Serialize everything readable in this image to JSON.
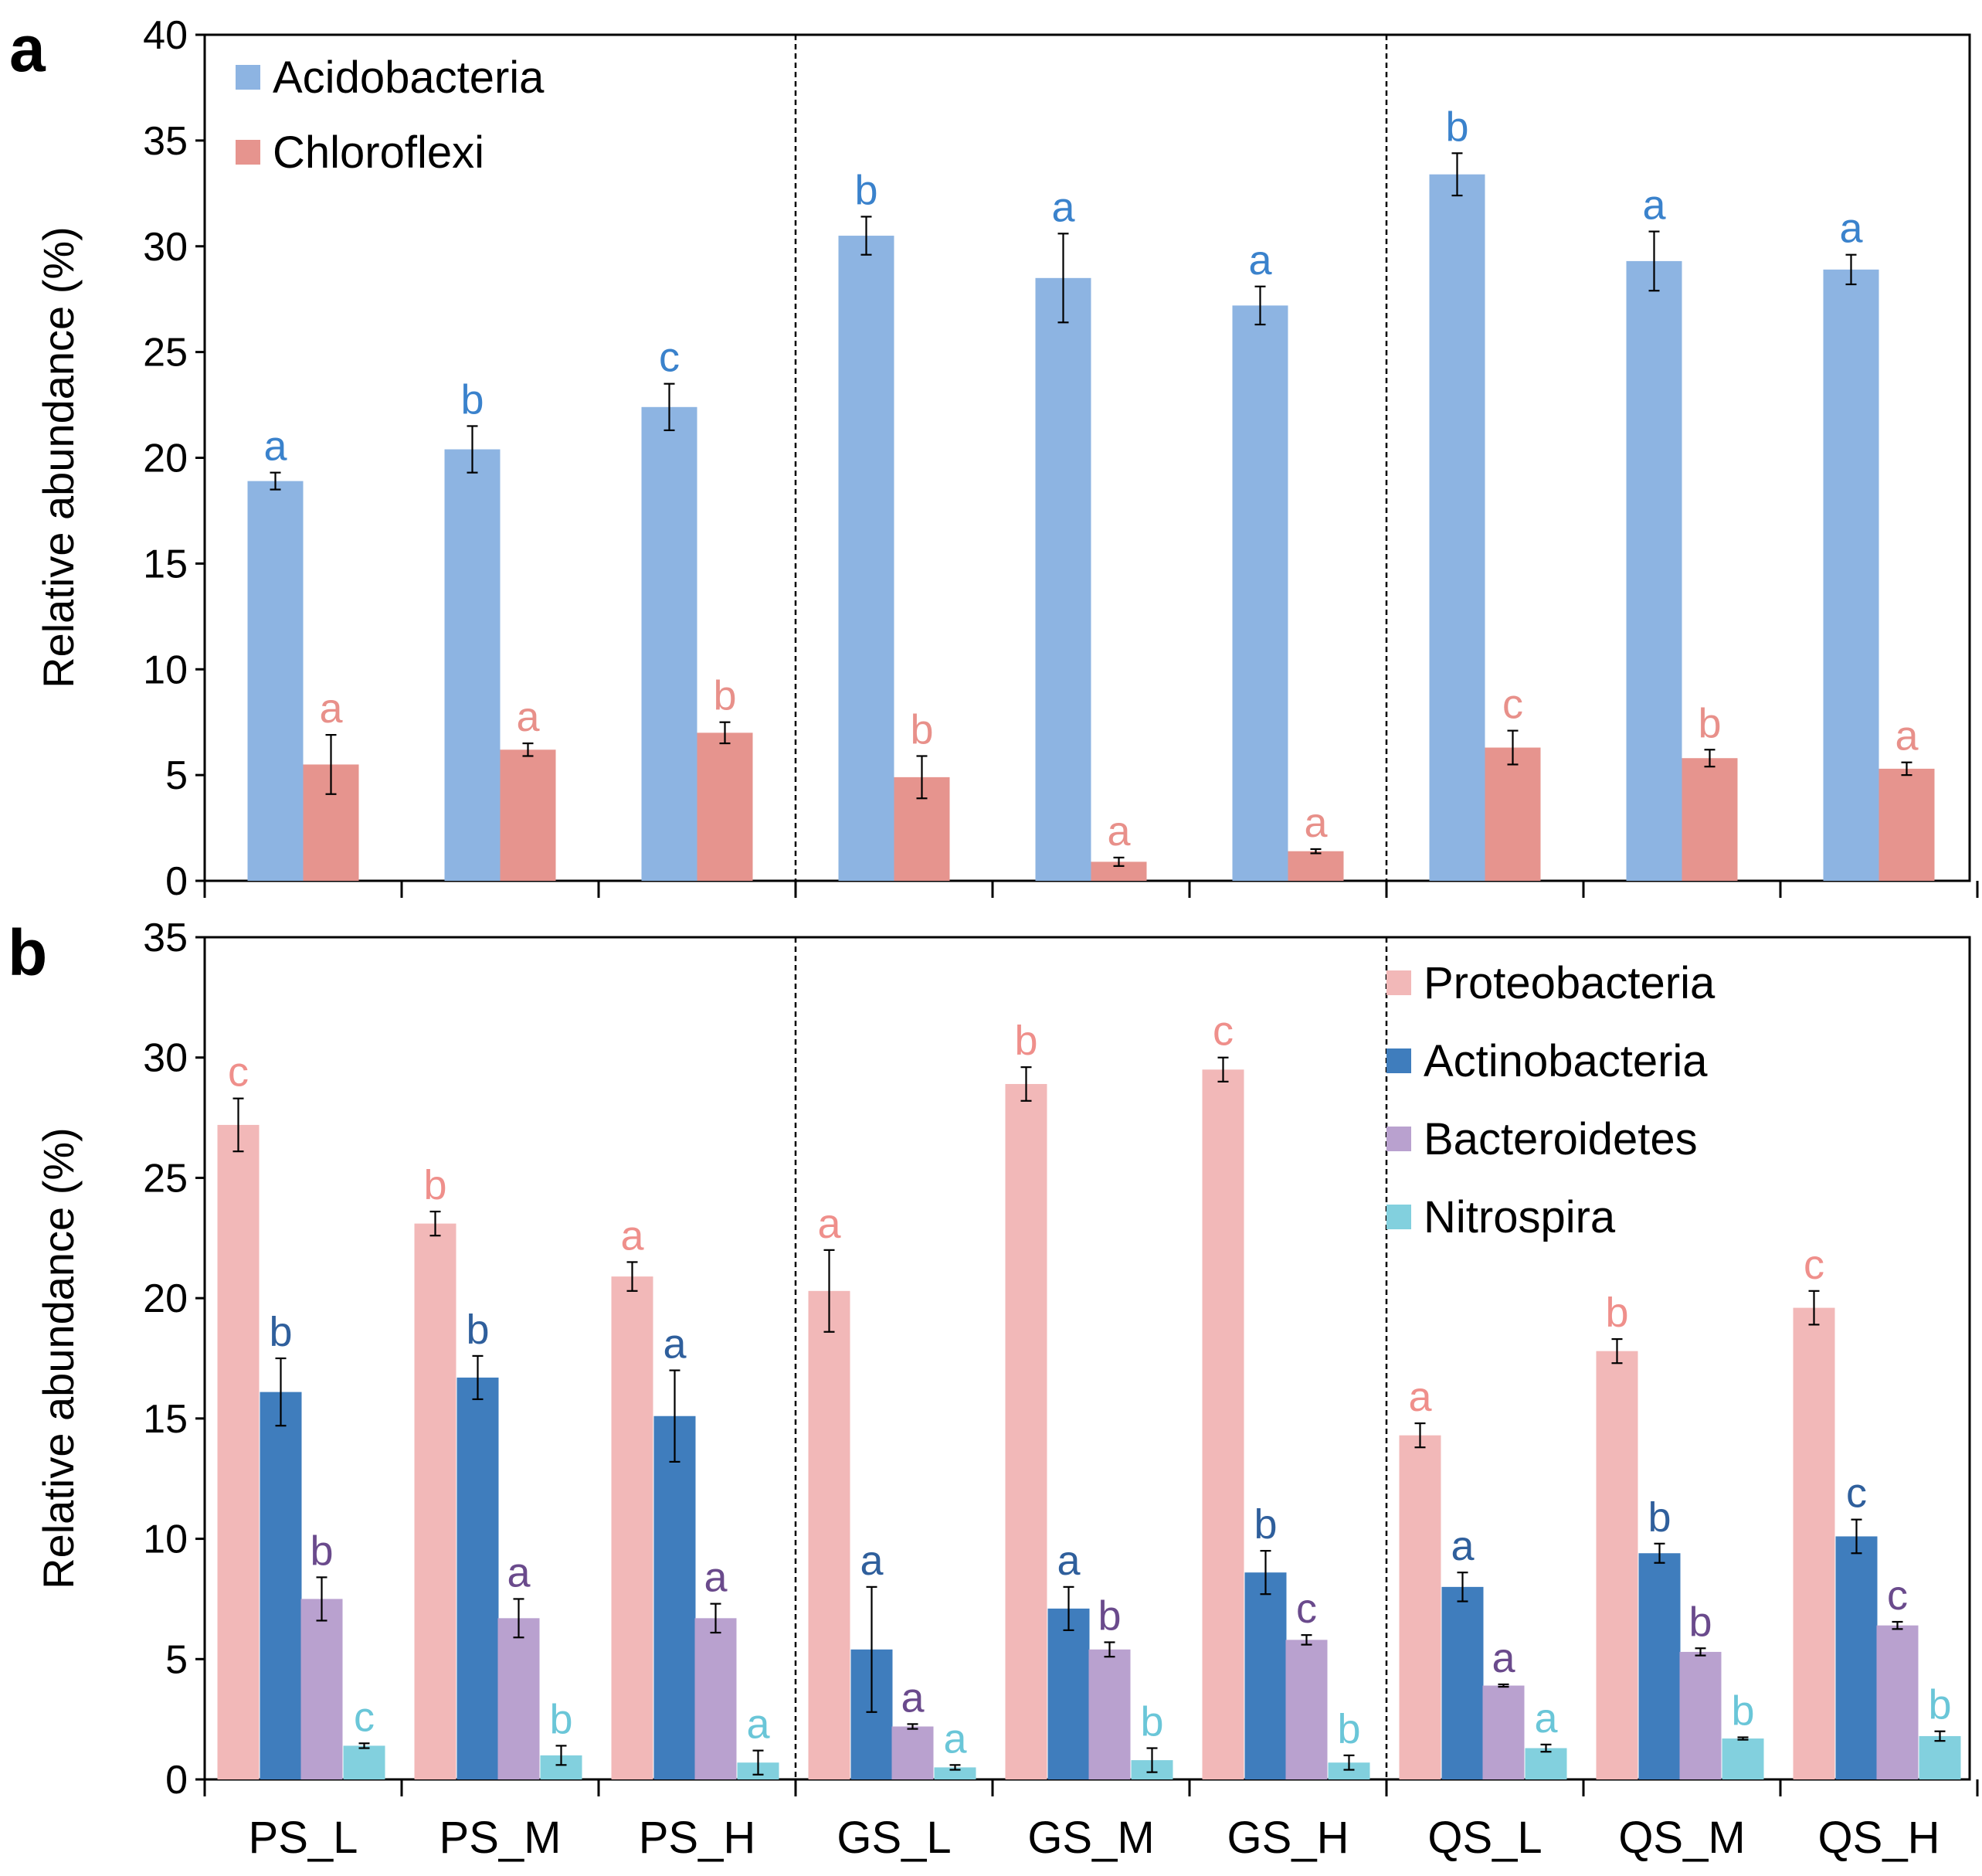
{
  "figure": {
    "categories": [
      "PS_L",
      "PS_M",
      "PS_H",
      "GS_L",
      "GS_M",
      "GS_H",
      "QS_L",
      "QS_M",
      "QS_H"
    ]
  },
  "chart_data": [
    {
      "panel_label": "a",
      "type": "bar",
      "ylabel": "Relative abundance (%)",
      "ylim": [
        0,
        40
      ],
      "yticks": [
        0,
        5,
        10,
        15,
        20,
        25,
        30,
        35,
        40
      ],
      "legend_position": "top-left",
      "categories": [
        "PS_L",
        "PS_M",
        "PS_H",
        "GS_L",
        "GS_M",
        "GS_H",
        "QS_L",
        "QS_M",
        "QS_H"
      ],
      "series": [
        {
          "name": "Acidobacteria",
          "color": "#8db4e2",
          "label_color": "#3a82cc",
          "values": [
            18.9,
            20.4,
            22.4,
            30.5,
            28.5,
            27.2,
            33.4,
            29.3,
            28.9
          ],
          "errors": [
            0.4,
            1.1,
            1.1,
            0.9,
            2.1,
            0.9,
            1.0,
            1.4,
            0.7
          ],
          "letters": [
            "a",
            "b",
            "c",
            "b",
            "a",
            "a",
            "b",
            "a",
            "a"
          ]
        },
        {
          "name": "Chloroflexi",
          "color": "#e6948e",
          "label_color": "#e8908a",
          "values": [
            5.5,
            6.2,
            7.0,
            4.9,
            0.9,
            1.4,
            6.3,
            5.8,
            5.3
          ],
          "errors": [
            1.4,
            0.3,
            0.5,
            1.0,
            0.2,
            0.1,
            0.8,
            0.4,
            0.3
          ],
          "letters": [
            "a",
            "a",
            "b",
            "b",
            "a",
            "a",
            "c",
            "b",
            "a"
          ]
        }
      ]
    },
    {
      "panel_label": "b",
      "type": "bar",
      "ylabel": "Relative abundance (%)",
      "ylim": [
        0,
        35
      ],
      "yticks": [
        0,
        5,
        10,
        15,
        20,
        25,
        30,
        35
      ],
      "legend_position": "top-right",
      "categories": [
        "PS_L",
        "PS_M",
        "PS_H",
        "GS_L",
        "GS_M",
        "GS_H",
        "QS_L",
        "QS_M",
        "QS_H"
      ],
      "series": [
        {
          "name": "Proteobacteria",
          "color": "#f2b8b8",
          "label_color": "#ef8f8b",
          "values": [
            27.2,
            23.1,
            20.9,
            20.3,
            28.9,
            29.5,
            14.3,
            17.8,
            19.6
          ],
          "errors": [
            1.1,
            0.5,
            0.6,
            1.7,
            0.7,
            0.5,
            0.5,
            0.5,
            0.7
          ],
          "letters": [
            "c",
            "b",
            "a",
            "a",
            "b",
            "c",
            "a",
            "b",
            "c"
          ]
        },
        {
          "name": "Actinobacteria",
          "color": "#3f7dbd",
          "label_color": "#2f5f9c",
          "values": [
            16.1,
            16.7,
            15.1,
            5.4,
            7.1,
            8.6,
            8.0,
            9.4,
            10.1
          ],
          "errors": [
            1.4,
            0.9,
            1.9,
            2.6,
            0.9,
            0.9,
            0.6,
            0.4,
            0.7
          ],
          "letters": [
            "b",
            "b",
            "a",
            "a",
            "a",
            "b",
            "a",
            "b",
            "c"
          ]
        },
        {
          "name": "Bacteroidetes",
          "color": "#b9a1cf",
          "label_color": "#6a4a8c",
          "values": [
            7.5,
            6.7,
            6.7,
            2.2,
            5.4,
            5.8,
            3.9,
            5.3,
            6.4
          ],
          "errors": [
            0.9,
            0.8,
            0.6,
            0.1,
            0.3,
            0.2,
            0.05,
            0.15,
            0.15
          ],
          "letters": [
            "b",
            "a",
            "a",
            "a",
            "b",
            "c",
            "a",
            "b",
            "c"
          ]
        },
        {
          "name": "Nitrospira",
          "color": "#82d0de",
          "label_color": "#6ac6d8",
          "values": [
            1.4,
            1.0,
            0.7,
            0.5,
            0.8,
            0.7,
            1.3,
            1.7,
            1.8
          ],
          "errors": [
            0.1,
            0.4,
            0.5,
            0.1,
            0.5,
            0.3,
            0.15,
            0.05,
            0.2
          ],
          "letters": [
            "c",
            "b",
            "a",
            "a",
            "b",
            "b",
            "a",
            "b",
            "b"
          ]
        }
      ]
    }
  ]
}
